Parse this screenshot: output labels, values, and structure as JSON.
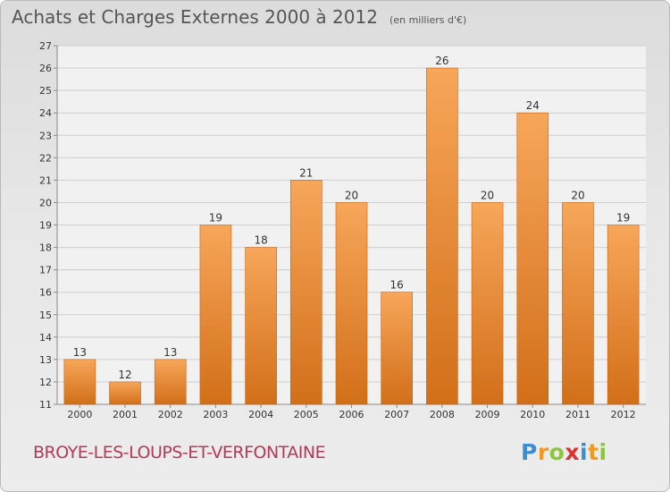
{
  "title": "Achats et Charges Externes 2000 à 2012",
  "subtitle": "(en milliers d'€)",
  "commune": "BROYE-LES-LOUPS-ET-VERFONTAINE",
  "logo": {
    "text": "Proxiti",
    "letters": [
      {
        "char": "P",
        "color": "#3b8fd1"
      },
      {
        "char": "r",
        "color": "#f39a1e"
      },
      {
        "char": "o",
        "color": "#8cc63f"
      },
      {
        "char": "x",
        "color": "#e0312f"
      },
      {
        "char": "i",
        "color": "#3b8fd1"
      },
      {
        "char": "t",
        "color": "#f39a1e"
      },
      {
        "char": "i",
        "color": "#8cc63f"
      }
    ]
  },
  "colors": {
    "bar_top": "#f7a65a",
    "bar_bottom": "#d26f19",
    "bar_edge": "#c86414",
    "grid": "#cfcfcf",
    "axis": "#8a8a8a",
    "text": "#333333"
  },
  "chart_data": {
    "type": "bar",
    "categories": [
      "2000",
      "2001",
      "2002",
      "2003",
      "2004",
      "2005",
      "2006",
      "2007",
      "2008",
      "2009",
      "2010",
      "2011",
      "2012"
    ],
    "values": [
      13,
      12,
      13,
      19,
      18,
      21,
      20,
      16,
      26,
      20,
      24,
      20,
      19
    ],
    "title": "Achats et Charges Externes 2000 à 2012",
    "subtitle": "(en milliers d'€)",
    "xlabel": "",
    "ylabel": "",
    "ylim": [
      11,
      27
    ],
    "yticks": [
      11,
      12,
      13,
      14,
      15,
      16,
      17,
      18,
      19,
      20,
      21,
      22,
      23,
      24,
      25,
      26,
      27
    ],
    "grid": true,
    "data_labels": true
  }
}
